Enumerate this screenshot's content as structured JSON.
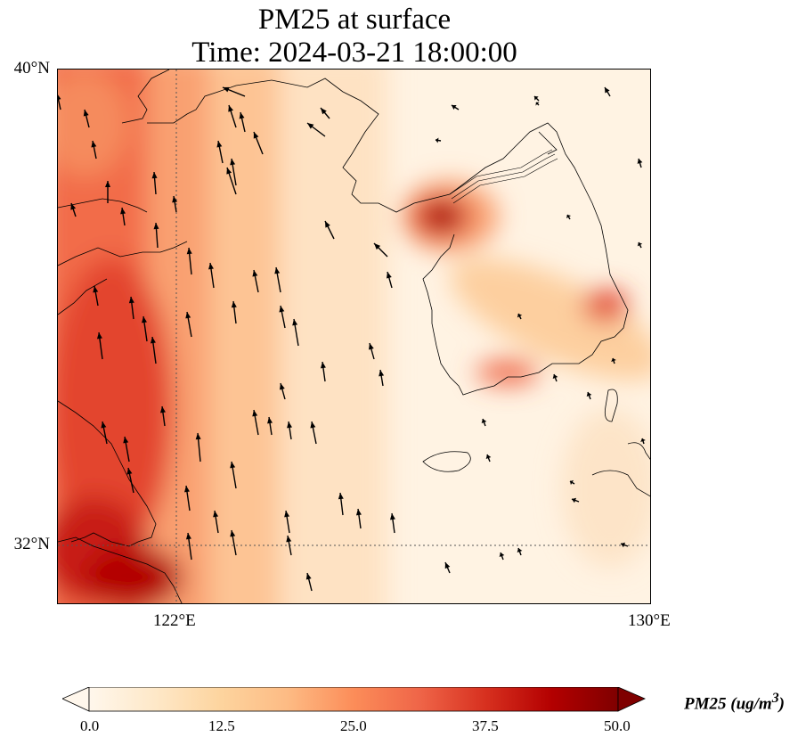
{
  "title": {
    "line1": "PM25 at surface",
    "line2": "Time: 2024-03-21 18:00:00"
  },
  "map": {
    "lat_labels": [
      "40°N",
      "32°N"
    ],
    "lon_labels": [
      "122°E",
      "130°E"
    ],
    "gridlines": "dotted",
    "extent": {
      "lon_min": 120,
      "lon_max": 130,
      "lat_min": 31,
      "lat_max": 40
    }
  },
  "colorbar": {
    "colormap": "OrRd",
    "ticks": [
      "0.0",
      "12.5",
      "25.0",
      "37.5",
      "50.0"
    ],
    "label": "PM25 (ug/m",
    "label_sup": "3",
    "label_end": ")",
    "min": 0,
    "max": 50,
    "extend": "both"
  }
}
